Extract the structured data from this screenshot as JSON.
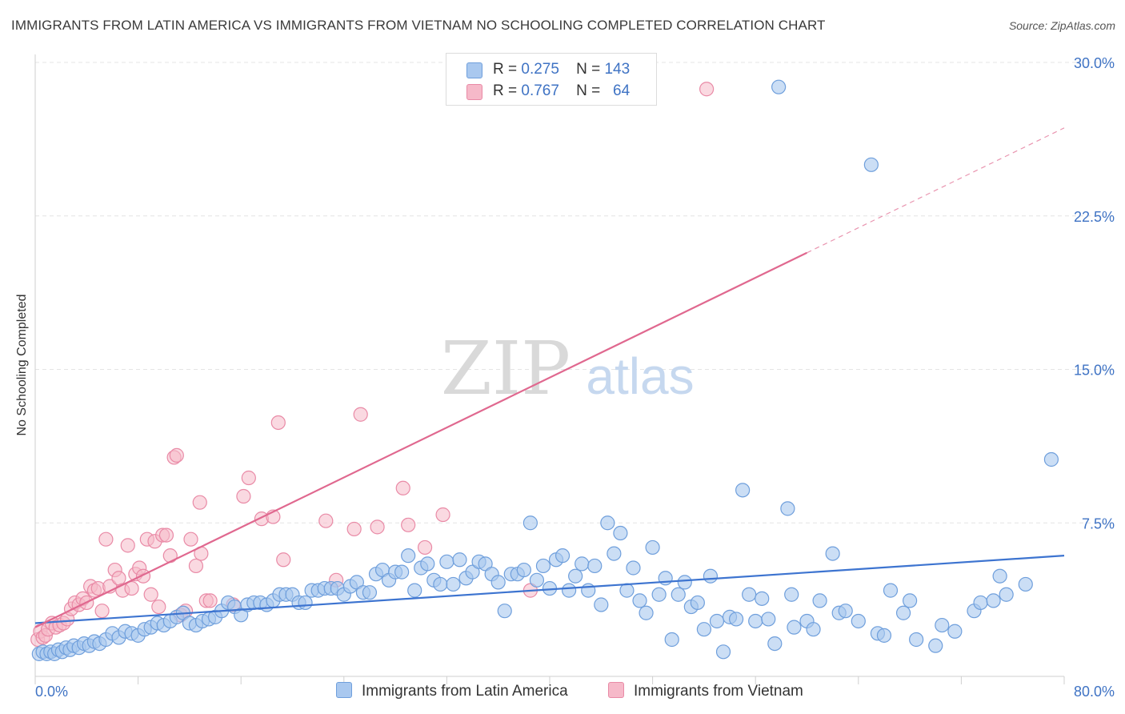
{
  "title": "IMMIGRANTS FROM LATIN AMERICA VS IMMIGRANTS FROM VIETNAM NO SCHOOLING COMPLETED CORRELATION CHART",
  "source": "Source: ZipAtlas.com",
  "watermark": {
    "zip": "ZIP",
    "atlas": "atlas"
  },
  "colors": {
    "blue_fill": "#a9c8ef",
    "blue_stroke": "#6f9fdc",
    "blue_line": "#3d74d0",
    "pink_fill": "#f6b9c9",
    "pink_stroke": "#e98aa6",
    "pink_line": "#e0688f",
    "tick_label": "#3f73c4",
    "grid": "#e4e4e4"
  },
  "legend_top": [
    {
      "r_label": "R =",
      "r_value": "0.275",
      "n_label": "N =",
      "n_value": "143"
    },
    {
      "r_label": "R =",
      "r_value": "0.767",
      "n_label": "N =",
      "n_value": "64"
    }
  ],
  "chart_data": {
    "type": "scatter",
    "xlabel": "",
    "ylabel": "No Schooling Completed",
    "xlim": [
      0,
      80
    ],
    "ylim": [
      0,
      30
    ],
    "x_tick_labels": [
      "0.0%",
      "80.0%"
    ],
    "y_ticks": [
      7.5,
      15.0,
      22.5,
      30.0
    ],
    "y_tick_labels": [
      "7.5%",
      "15.0%",
      "22.5%",
      "30.0%"
    ],
    "grid": "horizontal dashed",
    "legend": "bottom-center",
    "series": [
      {
        "name": "Immigrants from Latin America",
        "color": "blue",
        "points": [
          [
            0.3,
            1.1
          ],
          [
            0.6,
            1.2
          ],
          [
            0.9,
            1.1
          ],
          [
            1.2,
            1.2
          ],
          [
            1.5,
            1.1
          ],
          [
            1.8,
            1.3
          ],
          [
            2.1,
            1.2
          ],
          [
            2.4,
            1.4
          ],
          [
            2.7,
            1.3
          ],
          [
            3.0,
            1.5
          ],
          [
            3.4,
            1.4
          ],
          [
            3.8,
            1.6
          ],
          [
            4.2,
            1.5
          ],
          [
            4.6,
            1.7
          ],
          [
            5.0,
            1.6
          ],
          [
            5.5,
            1.8
          ],
          [
            6.0,
            2.1
          ],
          [
            6.5,
            1.9
          ],
          [
            7.0,
            2.2
          ],
          [
            7.5,
            2.1
          ],
          [
            8.0,
            2.0
          ],
          [
            8.5,
            2.3
          ],
          [
            9.0,
            2.4
          ],
          [
            9.5,
            2.6
          ],
          [
            10.0,
            2.5
          ],
          [
            10.5,
            2.7
          ],
          [
            11.0,
            2.9
          ],
          [
            11.5,
            3.1
          ],
          [
            12.0,
            2.6
          ],
          [
            12.5,
            2.5
          ],
          [
            13.0,
            2.7
          ],
          [
            13.5,
            2.8
          ],
          [
            14.0,
            2.9
          ],
          [
            14.5,
            3.2
          ],
          [
            15.0,
            3.6
          ],
          [
            15.5,
            3.4
          ],
          [
            16.0,
            3.0
          ],
          [
            16.5,
            3.5
          ],
          [
            17.0,
            3.6
          ],
          [
            17.5,
            3.6
          ],
          [
            18.0,
            3.5
          ],
          [
            18.5,
            3.7
          ],
          [
            19.0,
            4.0
          ],
          [
            19.5,
            4.0
          ],
          [
            20.0,
            4.0
          ],
          [
            20.5,
            3.6
          ],
          [
            21.0,
            3.6
          ],
          [
            21.5,
            4.2
          ],
          [
            22.0,
            4.2
          ],
          [
            22.5,
            4.3
          ],
          [
            23.0,
            4.3
          ],
          [
            23.5,
            4.3
          ],
          [
            24.0,
            4.0
          ],
          [
            24.5,
            4.4
          ],
          [
            25.0,
            4.6
          ],
          [
            25.5,
            4.1
          ],
          [
            26.0,
            4.1
          ],
          [
            26.5,
            5.0
          ],
          [
            27.0,
            5.2
          ],
          [
            27.5,
            4.7
          ],
          [
            28.0,
            5.1
          ],
          [
            28.5,
            5.1
          ],
          [
            29.0,
            5.9
          ],
          [
            29.5,
            4.2
          ],
          [
            30.0,
            5.3
          ],
          [
            30.5,
            5.5
          ],
          [
            31.0,
            4.7
          ],
          [
            31.5,
            4.5
          ],
          [
            32.0,
            5.6
          ],
          [
            32.5,
            4.5
          ],
          [
            33.0,
            5.7
          ],
          [
            33.5,
            4.8
          ],
          [
            34.0,
            5.1
          ],
          [
            34.5,
            5.6
          ],
          [
            35.0,
            5.5
          ],
          [
            35.5,
            5.0
          ],
          [
            36.0,
            4.6
          ],
          [
            36.5,
            3.2
          ],
          [
            37.0,
            5.0
          ],
          [
            37.5,
            5.0
          ],
          [
            38.0,
            5.2
          ],
          [
            38.5,
            7.5
          ],
          [
            39.0,
            4.7
          ],
          [
            39.5,
            5.4
          ],
          [
            40.0,
            4.3
          ],
          [
            40.5,
            5.7
          ],
          [
            41.0,
            5.9
          ],
          [
            41.5,
            4.2
          ],
          [
            42.0,
            4.9
          ],
          [
            42.5,
            5.5
          ],
          [
            43.0,
            4.2
          ],
          [
            43.5,
            5.4
          ],
          [
            44.0,
            3.5
          ],
          [
            44.5,
            7.5
          ],
          [
            45.0,
            6.0
          ],
          [
            45.5,
            7.0
          ],
          [
            46.0,
            4.2
          ],
          [
            46.5,
            5.3
          ],
          [
            47.0,
            3.7
          ],
          [
            47.5,
            3.1
          ],
          [
            48.0,
            6.3
          ],
          [
            48.5,
            4.0
          ],
          [
            49.0,
            4.8
          ],
          [
            49.5,
            1.8
          ],
          [
            50.0,
            4.0
          ],
          [
            50.5,
            4.6
          ],
          [
            51.0,
            3.4
          ],
          [
            51.5,
            3.6
          ],
          [
            52.0,
            2.3
          ],
          [
            52.5,
            4.9
          ],
          [
            53.0,
            2.7
          ],
          [
            53.5,
            1.2
          ],
          [
            54.0,
            2.9
          ],
          [
            54.5,
            2.8
          ],
          [
            55.0,
            9.1
          ],
          [
            55.5,
            4.0
          ],
          [
            56.0,
            2.7
          ],
          [
            56.5,
            3.8
          ],
          [
            57.0,
            2.8
          ],
          [
            57.5,
            1.6
          ],
          [
            57.8,
            28.8
          ],
          [
            58.5,
            8.2
          ],
          [
            58.8,
            4.0
          ],
          [
            59.0,
            2.4
          ],
          [
            60.0,
            2.7
          ],
          [
            60.5,
            2.3
          ],
          [
            61.0,
            3.7
          ],
          [
            62.0,
            6.0
          ],
          [
            62.5,
            3.1
          ],
          [
            63.0,
            3.2
          ],
          [
            64.0,
            2.7
          ],
          [
            65.0,
            25.0
          ],
          [
            65.5,
            2.1
          ],
          [
            66.0,
            2.0
          ],
          [
            66.5,
            4.2
          ],
          [
            67.5,
            3.1
          ],
          [
            68.0,
            3.7
          ],
          [
            68.5,
            1.8
          ],
          [
            70.0,
            1.5
          ],
          [
            70.5,
            2.5
          ],
          [
            71.5,
            2.2
          ],
          [
            73.0,
            3.2
          ],
          [
            73.5,
            3.6
          ],
          [
            74.5,
            3.7
          ],
          [
            75.0,
            4.9
          ],
          [
            75.5,
            4.0
          ],
          [
            77.0,
            4.5
          ],
          [
            79.0,
            10.6
          ]
        ]
      },
      {
        "name": "Immigrants from Vietnam",
        "color": "pink",
        "points": [
          [
            0.2,
            1.8
          ],
          [
            0.4,
            2.2
          ],
          [
            0.6,
            1.9
          ],
          [
            0.8,
            2.0
          ],
          [
            1.0,
            2.3
          ],
          [
            1.3,
            2.6
          ],
          [
            1.6,
            2.4
          ],
          [
            1.9,
            2.5
          ],
          [
            2.2,
            2.6
          ],
          [
            2.5,
            2.8
          ],
          [
            2.8,
            3.3
          ],
          [
            3.1,
            3.6
          ],
          [
            3.4,
            3.5
          ],
          [
            3.7,
            3.8
          ],
          [
            4.0,
            3.6
          ],
          [
            4.3,
            4.4
          ],
          [
            4.6,
            4.2
          ],
          [
            4.9,
            4.3
          ],
          [
            5.2,
            3.2
          ],
          [
            5.5,
            6.7
          ],
          [
            5.8,
            4.4
          ],
          [
            6.2,
            5.2
          ],
          [
            6.5,
            4.8
          ],
          [
            6.8,
            4.2
          ],
          [
            7.2,
            6.4
          ],
          [
            7.5,
            4.3
          ],
          [
            7.8,
            5.0
          ],
          [
            8.1,
            5.3
          ],
          [
            8.4,
            4.9
          ],
          [
            8.7,
            6.7
          ],
          [
            9.0,
            4.0
          ],
          [
            9.3,
            6.6
          ],
          [
            9.6,
            3.4
          ],
          [
            9.9,
            6.9
          ],
          [
            10.2,
            6.9
          ],
          [
            10.5,
            5.9
          ],
          [
            10.8,
            10.7
          ],
          [
            11.0,
            10.8
          ],
          [
            11.3,
            3.0
          ],
          [
            11.7,
            3.2
          ],
          [
            12.1,
            6.7
          ],
          [
            12.5,
            5.4
          ],
          [
            12.8,
            8.5
          ],
          [
            12.9,
            6.0
          ],
          [
            13.3,
            3.7
          ],
          [
            13.6,
            3.7
          ],
          [
            15.4,
            3.5
          ],
          [
            16.2,
            8.8
          ],
          [
            16.6,
            9.7
          ],
          [
            17.6,
            7.7
          ],
          [
            18.5,
            7.8
          ],
          [
            18.9,
            12.4
          ],
          [
            19.3,
            5.7
          ],
          [
            22.6,
            7.6
          ],
          [
            23.4,
            4.7
          ],
          [
            24.8,
            7.2
          ],
          [
            25.3,
            12.8
          ],
          [
            26.6,
            7.3
          ],
          [
            28.6,
            9.2
          ],
          [
            29.0,
            7.4
          ],
          [
            30.3,
            6.3
          ],
          [
            31.7,
            7.9
          ],
          [
            38.5,
            4.2
          ],
          [
            52.2,
            28.7
          ]
        ]
      }
    ],
    "trendlines": [
      {
        "series": "Immigrants from Latin America",
        "x": [
          0,
          80
        ],
        "y": [
          2.6,
          5.9
        ],
        "style": "solid"
      },
      {
        "series": "Immigrants from Vietnam",
        "x": [
          0,
          60
        ],
        "y": [
          2.4,
          20.7
        ],
        "style": "solid",
        "extension": {
          "x": [
            60,
            80
          ],
          "y": [
            20.7,
            26.8
          ],
          "style": "dashed"
        }
      }
    ]
  },
  "legend_bottom": [
    {
      "label": "Immigrants from Latin America"
    },
    {
      "label": "Immigrants from Vietnam"
    }
  ]
}
